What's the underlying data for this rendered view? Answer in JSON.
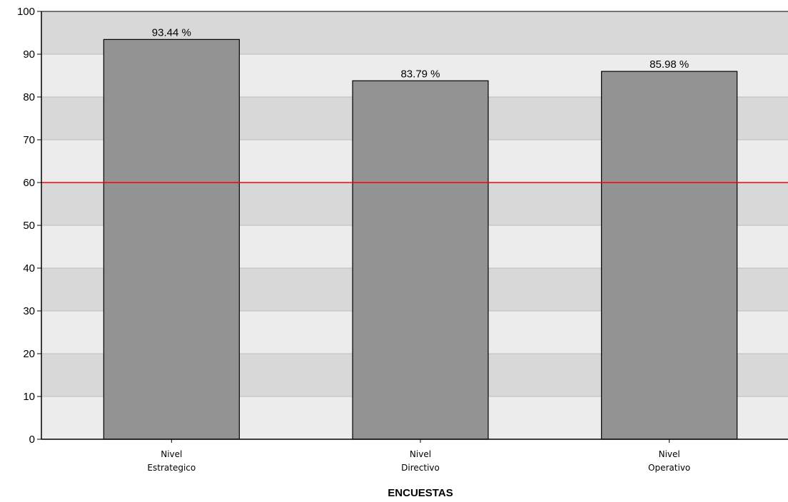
{
  "chart_data": {
    "type": "bar",
    "categories": [
      [
        "Nivel",
        "Estrategico"
      ],
      [
        "Nivel",
        "Directivo"
      ],
      [
        "Nivel",
        "Operativo"
      ]
    ],
    "values": [
      93.44,
      83.79,
      85.98
    ],
    "data_labels": [
      "93.44 %",
      "83.79 %",
      "85.98 %"
    ],
    "xlabel": "ENCUESTAS",
    "ylabel": "",
    "ylim": [
      0,
      100
    ],
    "yticks": [
      0,
      10,
      20,
      30,
      40,
      50,
      60,
      70,
      80,
      90,
      100
    ],
    "reference_line": {
      "value": 60,
      "color": "#ff0000"
    },
    "grid": true,
    "colors": {
      "bar_fill": "#939393",
      "bar_stroke": "#000000",
      "band_dark": "#d8d8d8",
      "band_light": "#ececec",
      "gridline": "#bdbdbd",
      "axis": "#000000"
    }
  }
}
